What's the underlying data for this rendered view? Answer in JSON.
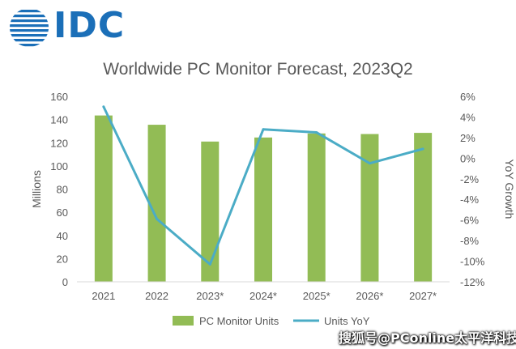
{
  "logo": {
    "text": "IDC",
    "color": "#1b6fb8"
  },
  "chart_data": {
    "type": "bar",
    "title": "Worldwide PC Monitor Forecast, 2023Q2",
    "categories": [
      "2021",
      "2022",
      "2023*",
      "2024*",
      "2025*",
      "2026*",
      "2027*"
    ],
    "series": [
      {
        "name": "PC Monitor Units",
        "type": "bar",
        "axis": "left",
        "color": "#92bc55",
        "values": [
          143.5,
          135.5,
          121.0,
          124.5,
          128.0,
          127.5,
          128.5
        ]
      },
      {
        "name": "Units YoY",
        "type": "line",
        "axis": "right",
        "color": "#4bacc6",
        "values": [
          5.0,
          -5.9,
          -10.3,
          2.8,
          2.5,
          -0.5,
          0.9
        ]
      }
    ],
    "ylabel": "Millions",
    "ylabel_right": "YoY Growth",
    "ylim": [
      0,
      160
    ],
    "yticks": [
      "0",
      "20",
      "40",
      "60",
      "80",
      "100",
      "120",
      "140",
      "160"
    ],
    "ylim_right": [
      -12,
      6
    ],
    "yticks_right": [
      "-12%",
      "-10%",
      "-8%",
      "-6%",
      "-4%",
      "-2%",
      "0%",
      "2%",
      "4%",
      "6%"
    ],
    "grid": false,
    "legend": "bottom"
  },
  "watermark": "搜狐号@PConline太平洋科技",
  "cutoff_text": "Forecast"
}
